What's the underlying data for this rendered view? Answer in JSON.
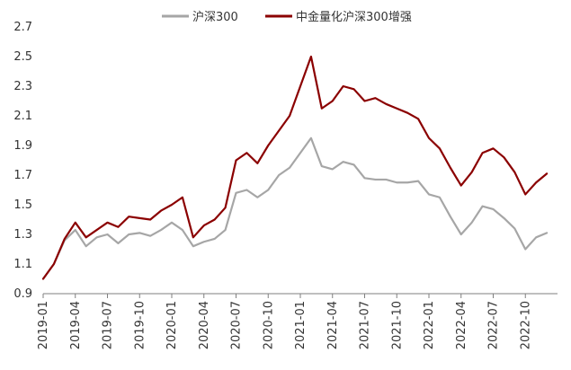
{
  "chart_data": {
    "type": "line",
    "legend_position": "top-center",
    "grid": false,
    "ylim": [
      0.9,
      2.7
    ],
    "yticks": [
      "0.9",
      "1.1",
      "1.3",
      "1.5",
      "1.7",
      "1.9",
      "2.1",
      "2.3",
      "2.5",
      "2.7"
    ],
    "xlim": [
      "2019-01",
      "2023-01"
    ],
    "xticks": [
      "2019-01",
      "2019-04",
      "2019-07",
      "2019-10",
      "2020-01",
      "2020-04",
      "2020-07",
      "2020-10",
      "2021-01",
      "2021-04",
      "2021-07",
      "2021-10",
      "2022-01",
      "2022-04",
      "2022-07",
      "2022-10"
    ],
    "series": [
      {
        "name": "沪深300",
        "color": "#a6a6a6",
        "points": [
          [
            "2019-01",
            1.0
          ],
          [
            "2019-02",
            1.1
          ],
          [
            "2019-03",
            1.26
          ],
          [
            "2019-04",
            1.33
          ],
          [
            "2019-05",
            1.22
          ],
          [
            "2019-06",
            1.28
          ],
          [
            "2019-07",
            1.3
          ],
          [
            "2019-08",
            1.24
          ],
          [
            "2019-09",
            1.3
          ],
          [
            "2019-10",
            1.31
          ],
          [
            "2019-11",
            1.29
          ],
          [
            "2019-12",
            1.33
          ],
          [
            "2020-01",
            1.38
          ],
          [
            "2020-02",
            1.33
          ],
          [
            "2020-03",
            1.22
          ],
          [
            "2020-04",
            1.25
          ],
          [
            "2020-05",
            1.27
          ],
          [
            "2020-06",
            1.33
          ],
          [
            "2020-07",
            1.58
          ],
          [
            "2020-08",
            1.6
          ],
          [
            "2020-09",
            1.55
          ],
          [
            "2020-10",
            1.6
          ],
          [
            "2020-11",
            1.7
          ],
          [
            "2020-12",
            1.75
          ],
          [
            "2021-01",
            1.85
          ],
          [
            "2021-02",
            1.95
          ],
          [
            "2021-03",
            1.76
          ],
          [
            "2021-04",
            1.74
          ],
          [
            "2021-05",
            1.79
          ],
          [
            "2021-06",
            1.77
          ],
          [
            "2021-07",
            1.68
          ],
          [
            "2021-08",
            1.67
          ],
          [
            "2021-09",
            1.67
          ],
          [
            "2021-10",
            1.65
          ],
          [
            "2021-11",
            1.65
          ],
          [
            "2021-12",
            1.66
          ],
          [
            "2022-01",
            1.57
          ],
          [
            "2022-02",
            1.55
          ],
          [
            "2022-03",
            1.42
          ],
          [
            "2022-04",
            1.3
          ],
          [
            "2022-05",
            1.38
          ],
          [
            "2022-06",
            1.49
          ],
          [
            "2022-07",
            1.47
          ],
          [
            "2022-08",
            1.41
          ],
          [
            "2022-09",
            1.34
          ],
          [
            "2022-10",
            1.2
          ],
          [
            "2022-11",
            1.28
          ],
          [
            "2022-12",
            1.31
          ]
        ]
      },
      {
        "name": "中金量化沪深300增强",
        "color": "#8b0000",
        "points": [
          [
            "2019-01",
            1.0
          ],
          [
            "2019-02",
            1.1
          ],
          [
            "2019-03",
            1.27
          ],
          [
            "2019-04",
            1.38
          ],
          [
            "2019-05",
            1.28
          ],
          [
            "2019-06",
            1.33
          ],
          [
            "2019-07",
            1.38
          ],
          [
            "2019-08",
            1.35
          ],
          [
            "2019-09",
            1.42
          ],
          [
            "2019-10",
            1.41
          ],
          [
            "2019-11",
            1.4
          ],
          [
            "2019-12",
            1.46
          ],
          [
            "2020-01",
            1.5
          ],
          [
            "2020-02",
            1.55
          ],
          [
            "2020-03",
            1.28
          ],
          [
            "2020-04",
            1.36
          ],
          [
            "2020-05",
            1.4
          ],
          [
            "2020-06",
            1.48
          ],
          [
            "2020-07",
            1.8
          ],
          [
            "2020-08",
            1.85
          ],
          [
            "2020-09",
            1.78
          ],
          [
            "2020-10",
            1.9
          ],
          [
            "2020-11",
            2.0
          ],
          [
            "2020-12",
            2.1
          ],
          [
            "2021-01",
            2.3
          ],
          [
            "2021-02",
            2.5
          ],
          [
            "2021-03",
            2.15
          ],
          [
            "2021-04",
            2.2
          ],
          [
            "2021-05",
            2.3
          ],
          [
            "2021-06",
            2.28
          ],
          [
            "2021-07",
            2.2
          ],
          [
            "2021-08",
            2.22
          ],
          [
            "2021-09",
            2.18
          ],
          [
            "2021-10",
            2.15
          ],
          [
            "2021-11",
            2.12
          ],
          [
            "2021-12",
            2.08
          ],
          [
            "2022-01",
            1.95
          ],
          [
            "2022-02",
            1.88
          ],
          [
            "2022-03",
            1.75
          ],
          [
            "2022-04",
            1.63
          ],
          [
            "2022-05",
            1.72
          ],
          [
            "2022-06",
            1.85
          ],
          [
            "2022-07",
            1.88
          ],
          [
            "2022-08",
            1.82
          ],
          [
            "2022-09",
            1.72
          ],
          [
            "2022-10",
            1.57
          ],
          [
            "2022-11",
            1.65
          ],
          [
            "2022-12",
            1.71
          ]
        ]
      }
    ]
  }
}
